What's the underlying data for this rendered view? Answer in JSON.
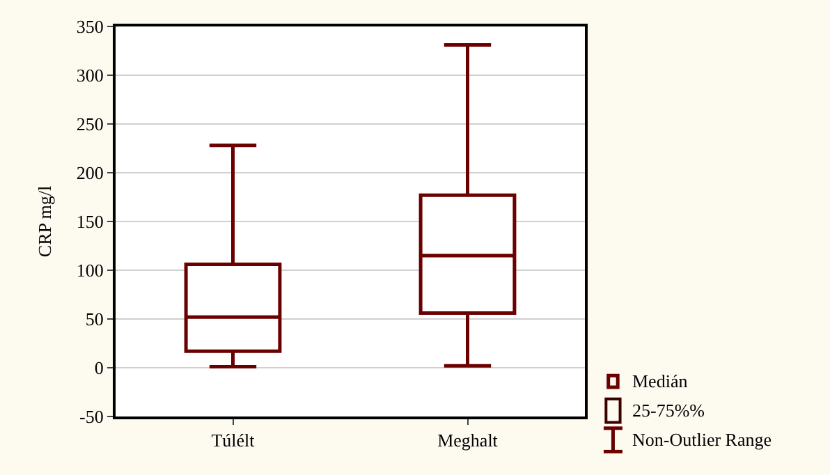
{
  "chart_data": {
    "type": "box",
    "ylabel": "CRP mg/l",
    "categories": [
      "Túlélt",
      "Meghalt"
    ],
    "boxes": [
      {
        "low": 1,
        "q1": 17,
        "median": 52,
        "q3": 106,
        "high": 228
      },
      {
        "low": 2,
        "q1": 56,
        "median": 115,
        "q3": 177,
        "high": 331
      }
    ],
    "color": "#6b0000",
    "ylim": [
      -50,
      350
    ],
    "yticks": [
      -50,
      0,
      50,
      100,
      150,
      200,
      250,
      300,
      350
    ],
    "grid": "y",
    "annotations": [
      "Medián",
      "25-75%%",
      "Non-Outlier Range"
    ]
  }
}
